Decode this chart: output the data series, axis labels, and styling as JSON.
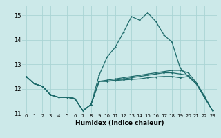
{
  "xlabel": "Humidex (Indice chaleur)",
  "ylabel": "",
  "background_color": "#cce9e9",
  "grid_color": "#aad4d4",
  "line_color": "#1e6b6b",
  "xlim": [
    -0.5,
    23.5
  ],
  "ylim": [
    11.0,
    15.4
  ],
  "yticks": [
    11,
    12,
    13,
    14,
    15
  ],
  "xticks": [
    0,
    1,
    2,
    3,
    4,
    5,
    6,
    7,
    8,
    9,
    10,
    11,
    12,
    13,
    14,
    15,
    16,
    17,
    18,
    19,
    20,
    21,
    22,
    23
  ],
  "line1_x": [
    0,
    1,
    2,
    3,
    4,
    5,
    6,
    7,
    8,
    9,
    10,
    11,
    12,
    13,
    14,
    15,
    16,
    17,
    18,
    19,
    20,
    21,
    22,
    23
  ],
  "line1_y": [
    12.5,
    12.2,
    12.1,
    11.75,
    11.65,
    11.65,
    11.6,
    11.1,
    11.35,
    12.55,
    13.3,
    13.7,
    14.3,
    14.95,
    14.8,
    15.1,
    14.75,
    14.2,
    13.9,
    12.85,
    12.5,
    12.2,
    11.65,
    11.1
  ],
  "line2_x": [
    0,
    1,
    2,
    3,
    4,
    5,
    6,
    7,
    8,
    9,
    10,
    11,
    12,
    13,
    14,
    15,
    16,
    17,
    18,
    19,
    20,
    21,
    22,
    23
  ],
  "line2_y": [
    12.5,
    12.2,
    12.1,
    11.75,
    11.65,
    11.65,
    11.6,
    11.1,
    11.35,
    12.3,
    12.3,
    12.35,
    12.4,
    12.45,
    12.5,
    12.55,
    12.6,
    12.65,
    12.65,
    12.6,
    12.55,
    12.2,
    11.65,
    11.1
  ],
  "line3_x": [
    0,
    1,
    2,
    3,
    4,
    5,
    6,
    7,
    8,
    9,
    10,
    11,
    12,
    13,
    14,
    15,
    16,
    17,
    18,
    19,
    20,
    21,
    22,
    23
  ],
  "line3_y": [
    12.5,
    12.2,
    12.1,
    11.75,
    11.65,
    11.65,
    11.6,
    11.1,
    11.35,
    12.3,
    12.35,
    12.4,
    12.45,
    12.5,
    12.55,
    12.6,
    12.65,
    12.7,
    12.75,
    12.75,
    12.65,
    12.25,
    11.7,
    11.1
  ],
  "line4_x": [
    0,
    1,
    2,
    3,
    4,
    5,
    6,
    7,
    8,
    9,
    10,
    11,
    12,
    13,
    14,
    15,
    16,
    17,
    18,
    19,
    20,
    21,
    22,
    23
  ],
  "line4_y": [
    12.5,
    12.2,
    12.1,
    11.75,
    11.65,
    11.65,
    11.6,
    11.1,
    11.35,
    12.3,
    12.3,
    12.33,
    12.36,
    12.38,
    12.4,
    12.45,
    12.48,
    12.5,
    12.5,
    12.45,
    12.5,
    12.2,
    11.65,
    11.1
  ]
}
